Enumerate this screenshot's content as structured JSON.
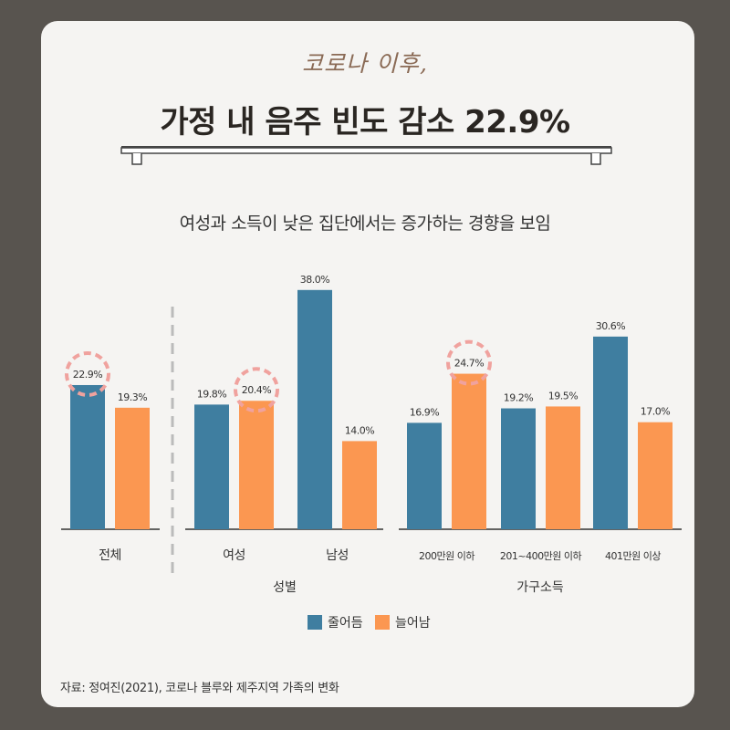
{
  "header": {
    "handwritten": "코로나 이후,",
    "title": "가정 내 음주 빈도 감소 22.9%",
    "subtitle": "여성과 소득이 낮은 집단에서는 증가하는 경향을 보임"
  },
  "source": "자료: 정여진(2021), 코로나 블루와 제주지역 가족의 변화",
  "colors": {
    "decreased": "#3f7ea0",
    "increased": "#fb9751",
    "highlight_circle": "#f0a29e",
    "axis": "#333333",
    "divider": "#bbbbbb"
  },
  "chart_data": {
    "type": "bar",
    "series": [
      {
        "name": "줄어듬",
        "color": "#3f7ea0",
        "values": [
          22.9,
          19.8,
          38.0,
          16.9,
          19.2,
          30.6
        ]
      },
      {
        "name": "늘어남",
        "color": "#fb9751",
        "values": [
          19.3,
          20.4,
          14.0,
          24.7,
          19.5,
          17.0
        ]
      }
    ],
    "categories": [
      "전체",
      "여성",
      "남성",
      "200만원 이하",
      "201~400만원 이하",
      "401만원 이상"
    ],
    "value_labels": [
      [
        "22.9%",
        "19.8%",
        "38.0%",
        "16.9%",
        "19.2%",
        "30.6%"
      ],
      [
        "19.3%",
        "20.4%",
        "14.0%",
        "24.7%",
        "19.5%",
        "17.0%"
      ]
    ],
    "groups": [
      {
        "label": "",
        "categories": [
          "전체"
        ]
      },
      {
        "label": "성별",
        "categories": [
          "여성",
          "남성"
        ]
      },
      {
        "label": "가구소득",
        "categories": [
          "200만원 이하",
          "201~400만원 이하",
          "401만원 이상"
        ]
      }
    ],
    "highlighted": [
      {
        "series": 0,
        "category": 0
      },
      {
        "series": 1,
        "category": 1
      },
      {
        "series": 1,
        "category": 3
      }
    ],
    "ylim": [
      0,
      40
    ],
    "legend_position": "bottom-center",
    "grid": false
  }
}
